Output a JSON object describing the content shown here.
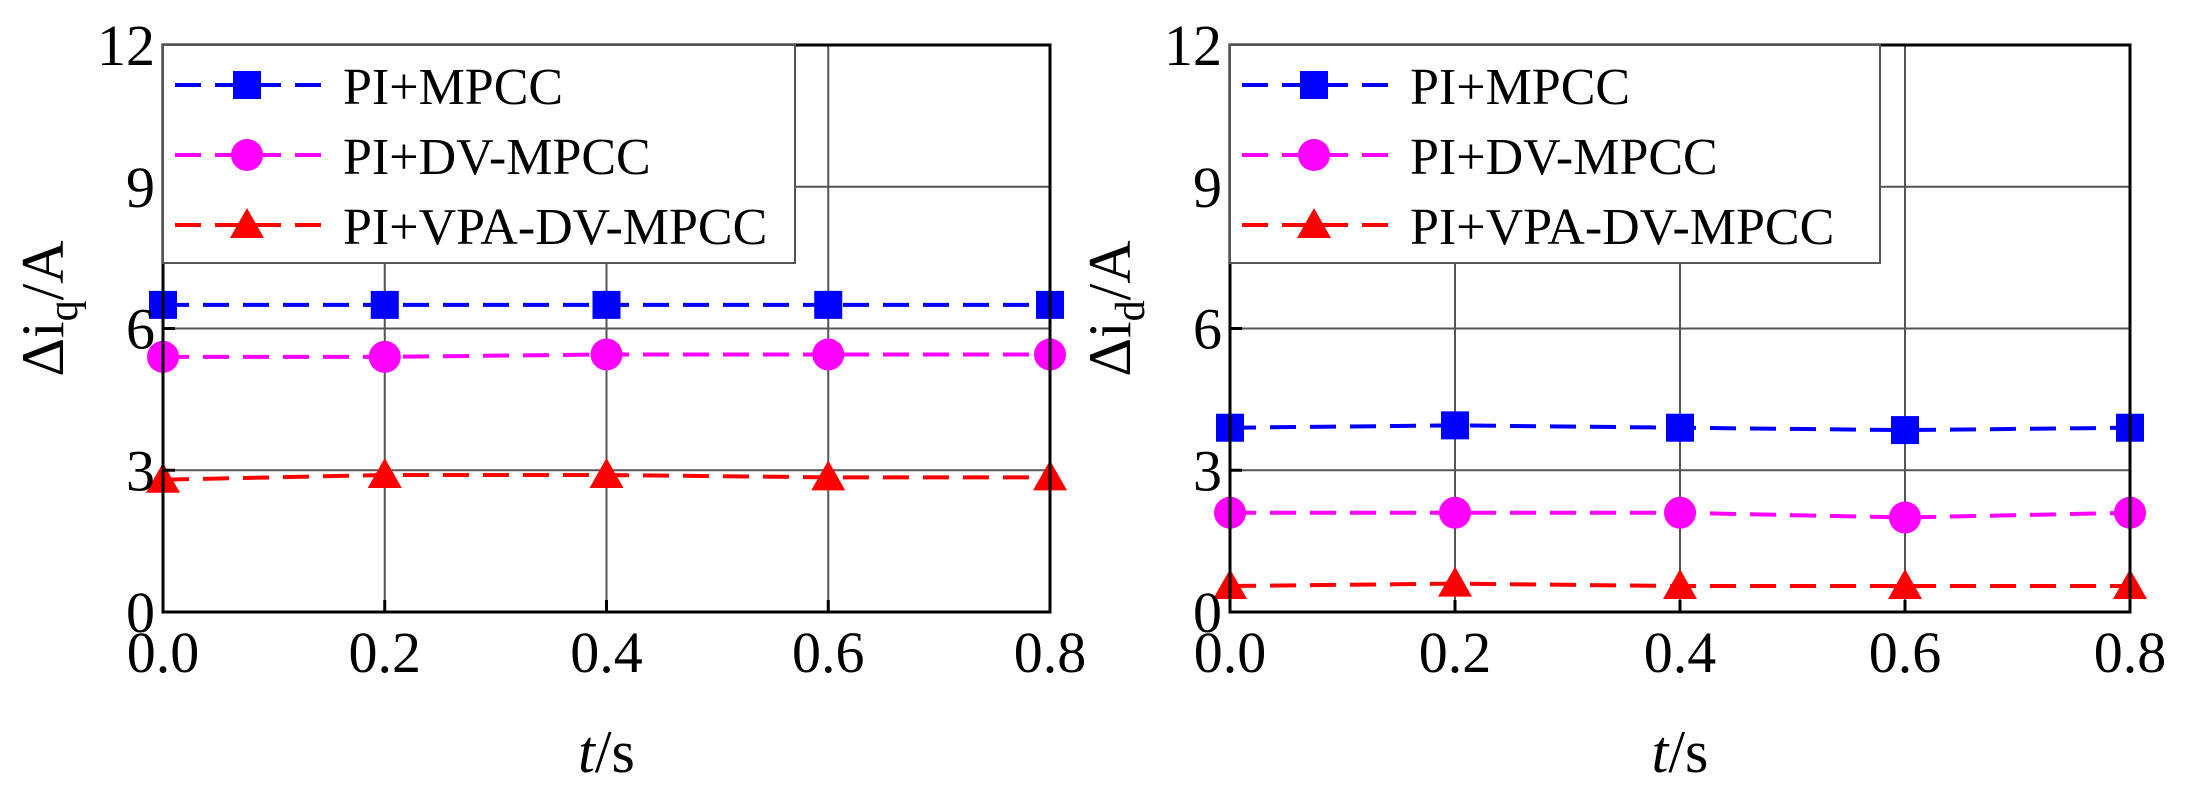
{
  "chart_data": [
    {
      "type": "line",
      "id": "left",
      "ylabel_main": "Δi",
      "ylabel_sub": "q",
      "ylabel_unit": "/A",
      "xlabel_italic": "t",
      "xlabel_unit": "/s",
      "x": [
        0.0,
        0.2,
        0.4,
        0.6,
        0.8
      ],
      "xlim": [
        0,
        0.8
      ],
      "ylim": [
        0,
        12
      ],
      "xticks": [
        "0.0",
        "0.2",
        "0.4",
        "0.6",
        "0.8"
      ],
      "yticks": [
        "0",
        "3",
        "6",
        "9",
        "12"
      ],
      "grid": true,
      "legend": "top-left",
      "series": [
        {
          "name": "PI+MPCC",
          "color": "#0000ff",
          "marker": "square",
          "values": [
            6.5,
            6.5,
            6.5,
            6.5,
            6.5
          ]
        },
        {
          "name": "PI+DV-MPCC",
          "color": "#ff00ff",
          "marker": "circle",
          "values": [
            5.4,
            5.4,
            5.45,
            5.45,
            5.45
          ]
        },
        {
          "name": "PI+VPA-DV-MPCC",
          "color": "#ff0000",
          "marker": "triangle",
          "values": [
            2.8,
            2.9,
            2.9,
            2.85,
            2.85
          ]
        }
      ]
    },
    {
      "type": "line",
      "id": "right",
      "ylabel_main": "Δi",
      "ylabel_sub": "d",
      "ylabel_unit": "/A",
      "xlabel_italic": "t",
      "xlabel_unit": "/s",
      "x": [
        0.0,
        0.2,
        0.4,
        0.6,
        0.8
      ],
      "xlim": [
        0,
        0.8
      ],
      "ylim": [
        0,
        12
      ],
      "xticks": [
        "0.0",
        "0.2",
        "0.4",
        "0.6",
        "0.8"
      ],
      "yticks": [
        "0",
        "3",
        "6",
        "9",
        "12"
      ],
      "grid": true,
      "legend": "top-left",
      "series": [
        {
          "name": "PI+MPCC",
          "color": "#0000ff",
          "marker": "square",
          "values": [
            3.9,
            3.95,
            3.9,
            3.85,
            3.9
          ]
        },
        {
          "name": "PI+DV-MPCC",
          "color": "#ff00ff",
          "marker": "circle",
          "values": [
            2.1,
            2.1,
            2.1,
            2.0,
            2.1
          ]
        },
        {
          "name": "PI+VPA-DV-MPCC",
          "color": "#ff0000",
          "marker": "triangle",
          "values": [
            0.55,
            0.6,
            0.55,
            0.55,
            0.55
          ]
        }
      ]
    }
  ]
}
